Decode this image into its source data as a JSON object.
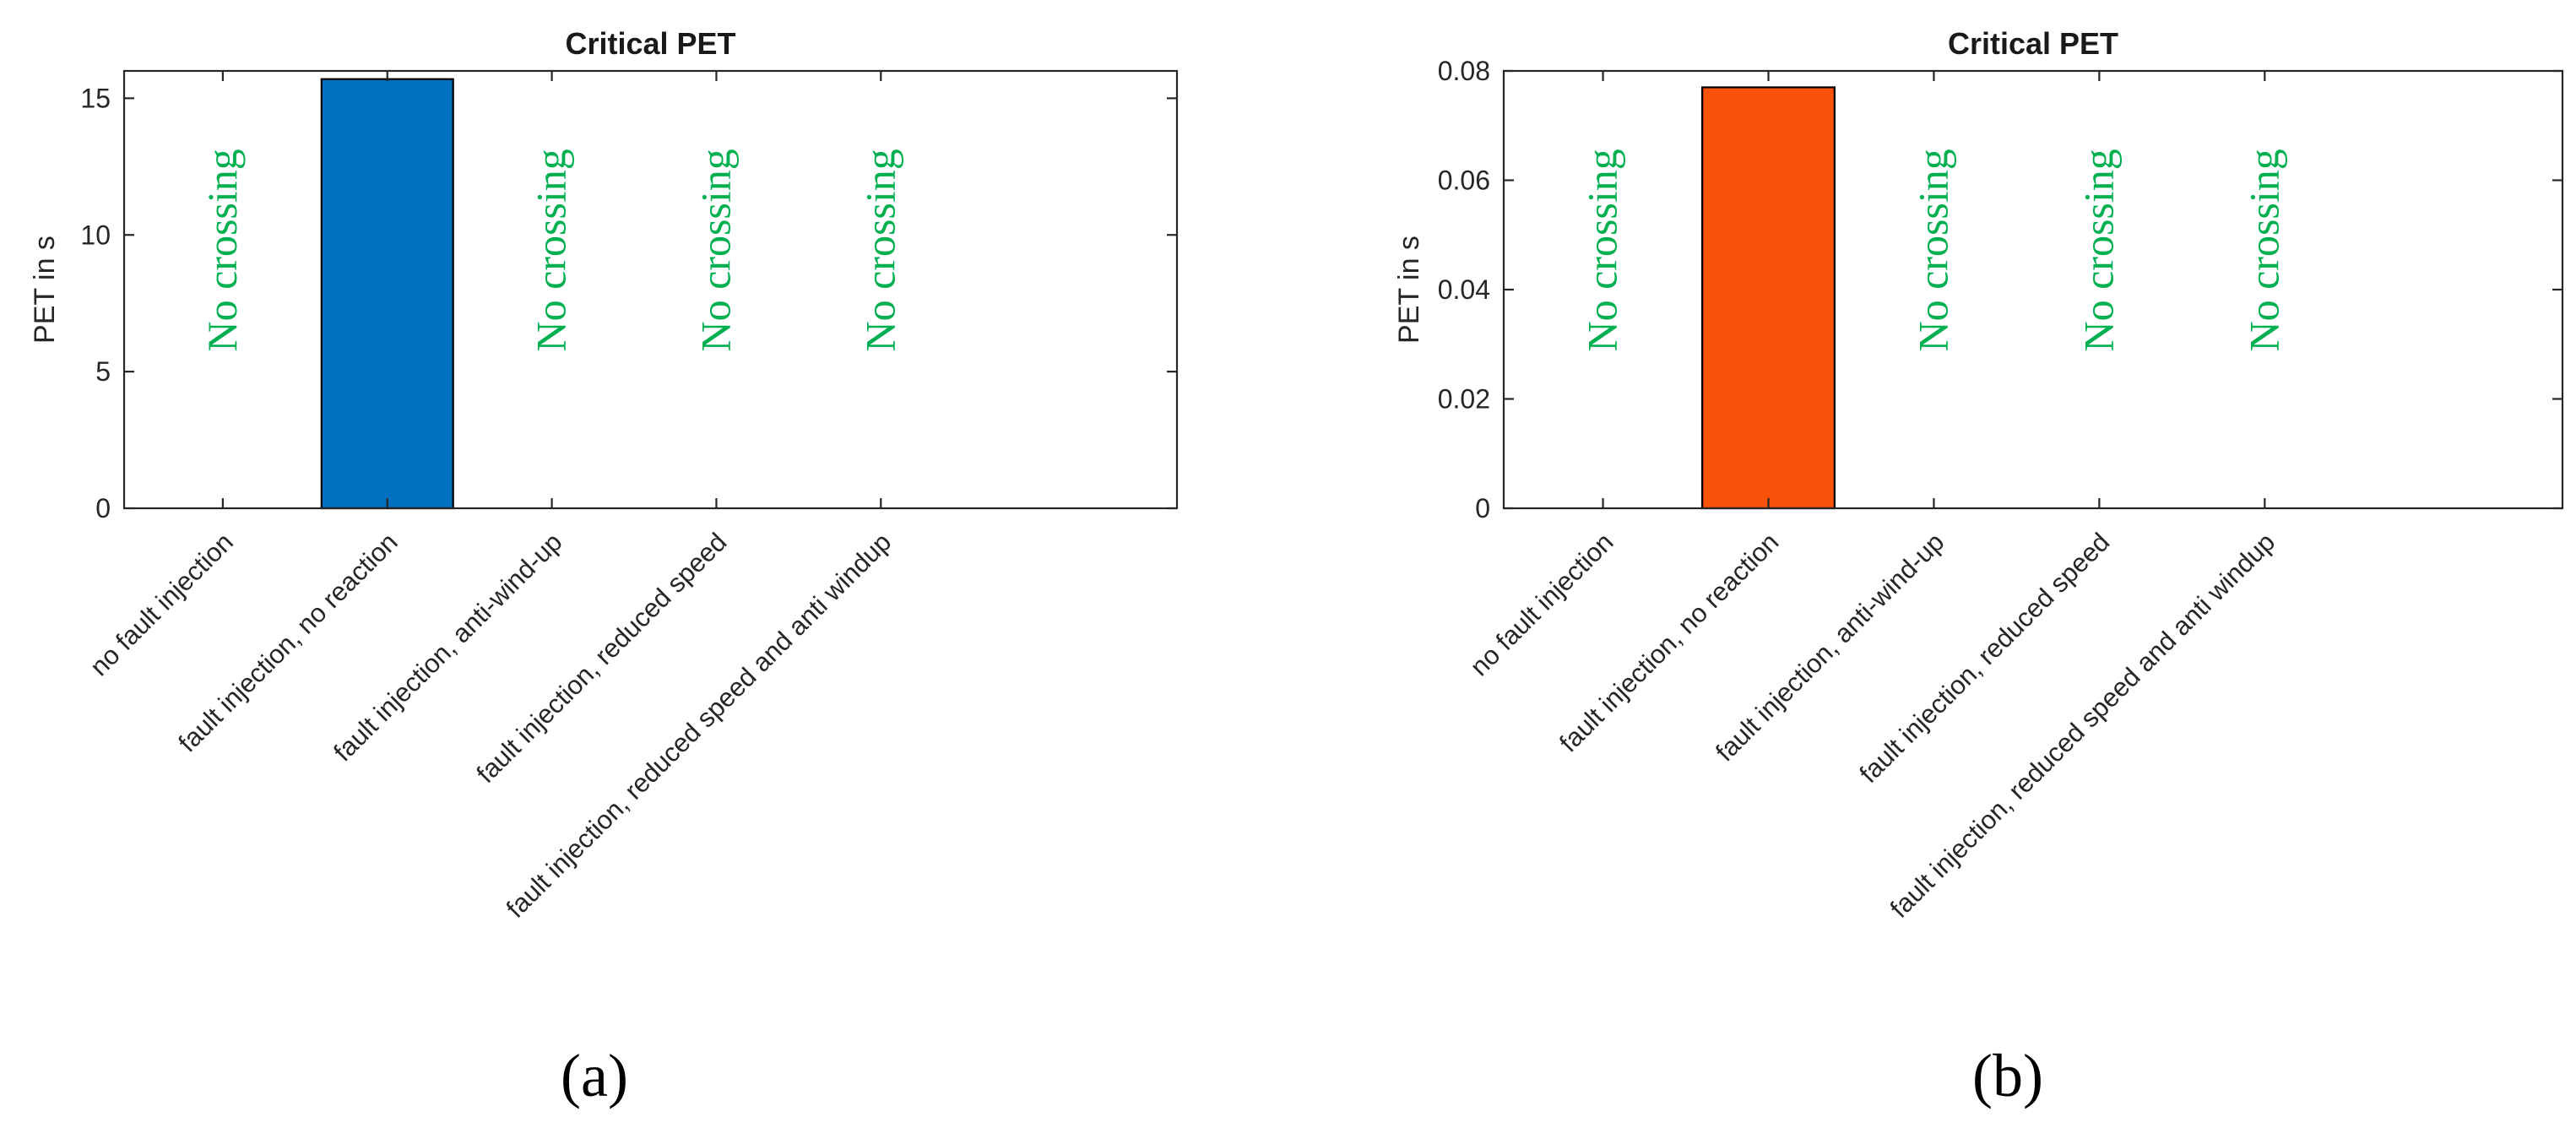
{
  "chart_data": [
    {
      "type": "bar",
      "title": "Critical PET",
      "ylabel": "PET in s",
      "xlabel": "",
      "categories": [
        "no fault injection",
        "fault injection, no reaction",
        "fault injection, anti-wind-up",
        "fault injection, reduced speed",
        "fault injection, reduced speed and anti windup"
      ],
      "values": [
        0,
        15.7,
        0,
        0,
        0
      ],
      "ylim": [
        0,
        16
      ],
      "yticks": [
        0,
        5,
        10,
        15
      ],
      "ytick_labels": [
        "0",
        "5",
        "10",
        "15"
      ],
      "bar_color": "#0070c0",
      "annotations": [
        {
          "category_index": 0,
          "text": "No crossing"
        },
        {
          "category_index": 2,
          "text": "No crossing"
        },
        {
          "category_index": 3,
          "text": "No crossing"
        },
        {
          "category_index": 4,
          "text": "No crossing"
        }
      ],
      "annotation_color": "#00b050",
      "panel_label": "(a)",
      "grid": false
    },
    {
      "type": "bar",
      "title": "Critical PET",
      "ylabel": "PET in s",
      "xlabel": "",
      "categories": [
        "no fault injection",
        "fault injection, no reaction",
        "fault injection, anti-wind-up",
        "fault injection, reduced speed",
        "fault injection, reduced speed and anti windup"
      ],
      "values": [
        0,
        0.077,
        0,
        0,
        0
      ],
      "ylim": [
        0,
        0.08
      ],
      "yticks": [
        0,
        0.02,
        0.04,
        0.06,
        0.08
      ],
      "ytick_labels": [
        "0",
        "0.02",
        "0.04",
        "0.06",
        "0.08"
      ],
      "bar_color": "#fa520a",
      "annotations": [
        {
          "category_index": 0,
          "text": "No crossing"
        },
        {
          "category_index": 2,
          "text": "No crossing"
        },
        {
          "category_index": 3,
          "text": "No crossing"
        },
        {
          "category_index": 4,
          "text": "No crossing"
        }
      ],
      "annotation_color": "#00b050",
      "panel_label": "(b)",
      "grid": false
    }
  ]
}
